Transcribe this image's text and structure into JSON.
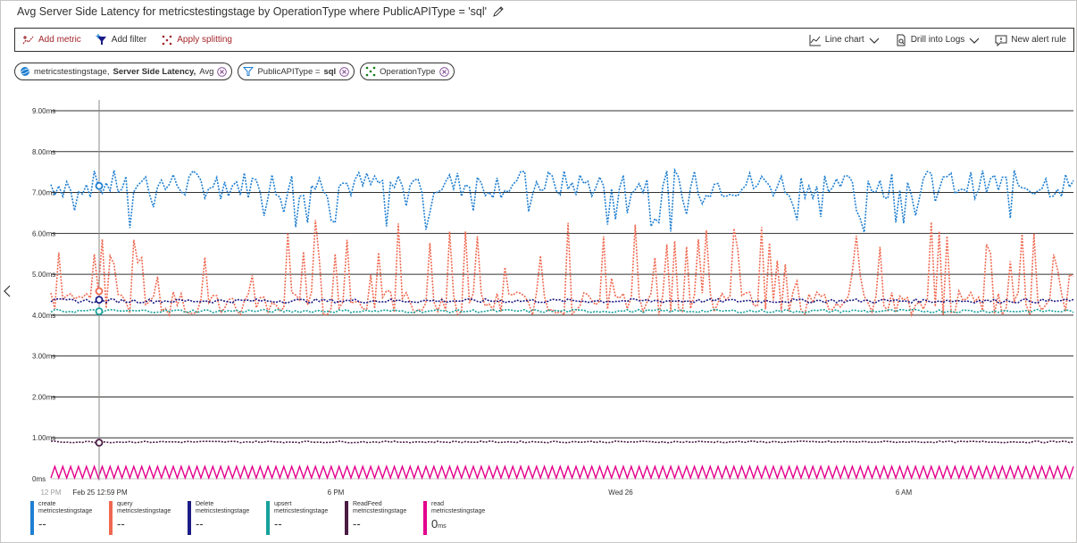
{
  "title": "Avg Server Side Latency for metricstestingstage by OperationType where PublicAPIType = 'sql'",
  "toolbar": {
    "add_metric": "Add metric",
    "add_filter": "Add filter",
    "apply_splitting": "Apply splitting",
    "line_chart": "Line chart",
    "drill_logs": "Drill into Logs",
    "new_alert": "New alert rule"
  },
  "pills": {
    "metric_resource": "metricstestingstage,",
    "metric_name": "Server Side Latency,",
    "metric_agg": "Avg",
    "filter_key": "PublicAPIType =",
    "filter_val": "sql",
    "split": "OperationType"
  },
  "icons": [
    "pencil-icon",
    "add-metric-icon",
    "add-filter-icon",
    "apply-splitting-icon",
    "line-chart-icon",
    "chevron-down-icon",
    "drill-logs-icon",
    "new-alert-icon",
    "cosmos-icon",
    "filter-icon",
    "split-icon",
    "close-icon",
    "chevron-left-icon"
  ],
  "cursor": {
    "time_label": "Feb 25 12:59 PM"
  },
  "chart_data": {
    "type": "line",
    "ylim": [
      0,
      9
    ],
    "y_ticks": [
      "0ms",
      "1.00ms",
      "2.00ms",
      "3.00ms",
      "4.00ms",
      "5.00ms",
      "6.00ms",
      "7.00ms",
      "8.00ms",
      "9.00ms"
    ],
    "x_ticks": [
      "12 PM",
      "6 PM",
      "Wed 26",
      "6 AM"
    ],
    "grid": true,
    "series": [
      {
        "name": "create",
        "color": "#1f7fd1",
        "base": 7.2,
        "noise": 0.35,
        "dip": 1.0,
        "dips": 0.1
      },
      {
        "name": "query",
        "color": "#ef6950",
        "base": 4.3,
        "noise": 0.3,
        "spike": 2.0,
        "spikes": 0.18
      },
      {
        "name": "Delete",
        "color": "#1b1b86",
        "base": 4.35,
        "noise": 0.05
      },
      {
        "name": "upsert",
        "color": "#16a19c",
        "base": 4.1,
        "noise": 0.04
      },
      {
        "name": "ReadFeed",
        "color": "#4b1c44",
        "base": 0.9,
        "noise": 0.02
      },
      {
        "name": "read",
        "color": "#e3008c",
        "base": 0.0,
        "pulse": 0.3
      }
    ]
  },
  "legend": [
    {
      "name": "create",
      "resource": "metricstestingstage",
      "value": "--",
      "color": "#1f7fd1"
    },
    {
      "name": "query",
      "resource": "metricstestingstage",
      "value": "--",
      "color": "#ef6950"
    },
    {
      "name": "Delete",
      "resource": "metricstestingstage",
      "value": "--",
      "color": "#1b1b86"
    },
    {
      "name": "upsert",
      "resource": "metricstestingstage",
      "value": "--",
      "color": "#16a19c"
    },
    {
      "name": "ReadFeed",
      "resource": "metricstestingstage",
      "value": "--",
      "color": "#4b1c44"
    },
    {
      "name": "read",
      "resource": "metricstestingstage",
      "value": "0",
      "unit": "ms",
      "color": "#e3008c"
    }
  ]
}
